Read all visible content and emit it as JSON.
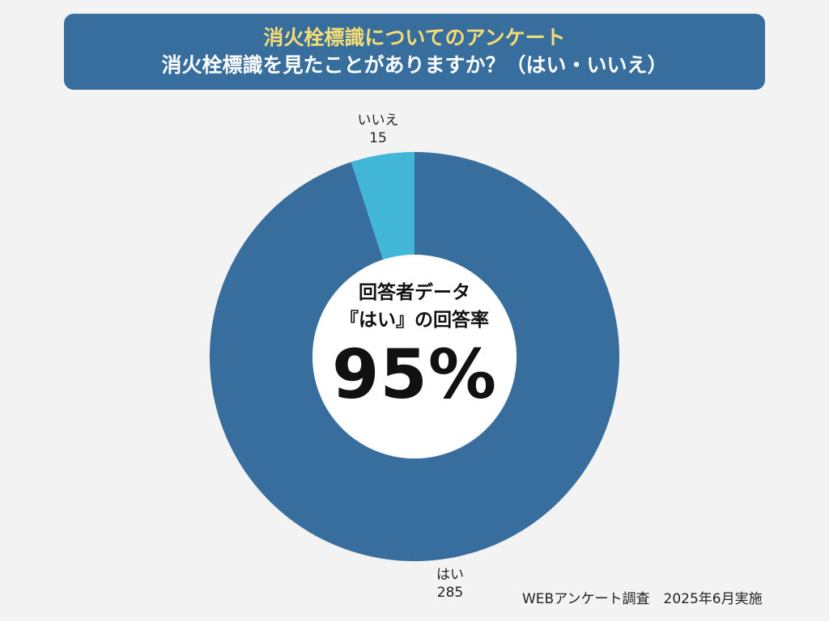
{
  "header": {
    "title": "消火栓標識についてのアンケート",
    "subtitle": "消火栓標識を見たことがありますか？（はい・いいえ）"
  },
  "center": {
    "line1": "回答者データ",
    "line2": "『はい』の回答率",
    "percent": "95%"
  },
  "labels": {
    "hai_name": "はい",
    "hai_value": "285",
    "iie_name": "いいえ",
    "iie_value": "15"
  },
  "footer": {
    "note": "WEBアンケート調査　2025年6月実施"
  },
  "chart_data": {
    "type": "pie",
    "variant": "donut",
    "title": "消火栓標識についてのアンケート",
    "subtitle": "消火栓標識を見たことがありますか？（はい・いいえ）",
    "slices": [
      {
        "label": "はい",
        "value": 285,
        "color": "#376e9e"
      },
      {
        "label": "いいえ",
        "value": 15,
        "color": "#41b6d6"
      }
    ],
    "start": "top",
    "direction": "clockwise",
    "center_label": "95%"
  }
}
